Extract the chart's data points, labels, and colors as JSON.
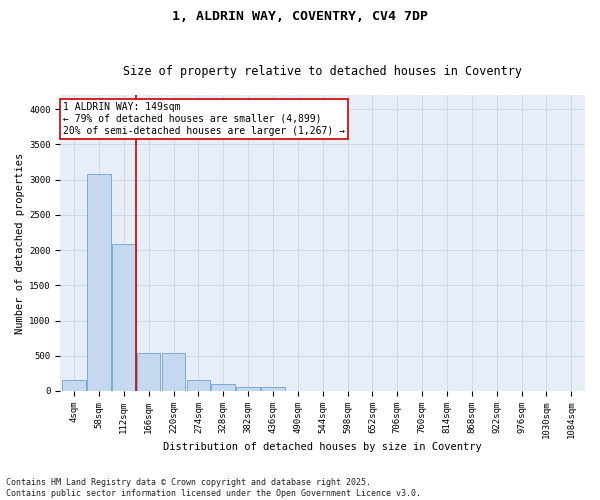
{
  "title": "1, ALDRIN WAY, COVENTRY, CV4 7DP",
  "subtitle": "Size of property relative to detached houses in Coventry",
  "xlabel": "Distribution of detached houses by size in Coventry",
  "ylabel": "Number of detached properties",
  "bin_labels": [
    "4sqm",
    "58sqm",
    "112sqm",
    "166sqm",
    "220sqm",
    "274sqm",
    "328sqm",
    "382sqm",
    "436sqm",
    "490sqm",
    "544sqm",
    "598sqm",
    "652sqm",
    "706sqm",
    "760sqm",
    "814sqm",
    "868sqm",
    "922sqm",
    "976sqm",
    "1030sqm",
    "1084sqm"
  ],
  "bar_values": [
    150,
    3080,
    2090,
    540,
    540,
    150,
    100,
    50,
    50,
    0,
    0,
    0,
    0,
    0,
    0,
    0,
    0,
    0,
    0,
    0,
    0
  ],
  "bar_color": "#c5d8ef",
  "bar_edge_color": "#7aadd4",
  "bar_linewidth": 0.7,
  "vline_color": "#cc0000",
  "vline_linewidth": 1.2,
  "vline_x": 2.5,
  "annotation_text": "1 ALDRIN WAY: 149sqm\n← 79% of detached houses are smaller (4,899)\n20% of semi-detached houses are larger (1,267) →",
  "annotation_box_color": "#ffffff",
  "annotation_box_edge": "#cc0000",
  "ylim": [
    0,
    4200
  ],
  "yticks": [
    0,
    500,
    1000,
    1500,
    2000,
    2500,
    3000,
    3500,
    4000
  ],
  "grid_color": "#c8d4e6",
  "background_color": "#e8eef8",
  "footer_text": "Contains HM Land Registry data © Crown copyright and database right 2025.\nContains public sector information licensed under the Open Government Licence v3.0.",
  "title_fontsize": 9.5,
  "subtitle_fontsize": 8.5,
  "axis_label_fontsize": 7.5,
  "tick_fontsize": 6.5,
  "annotation_fontsize": 7,
  "footer_fontsize": 6
}
